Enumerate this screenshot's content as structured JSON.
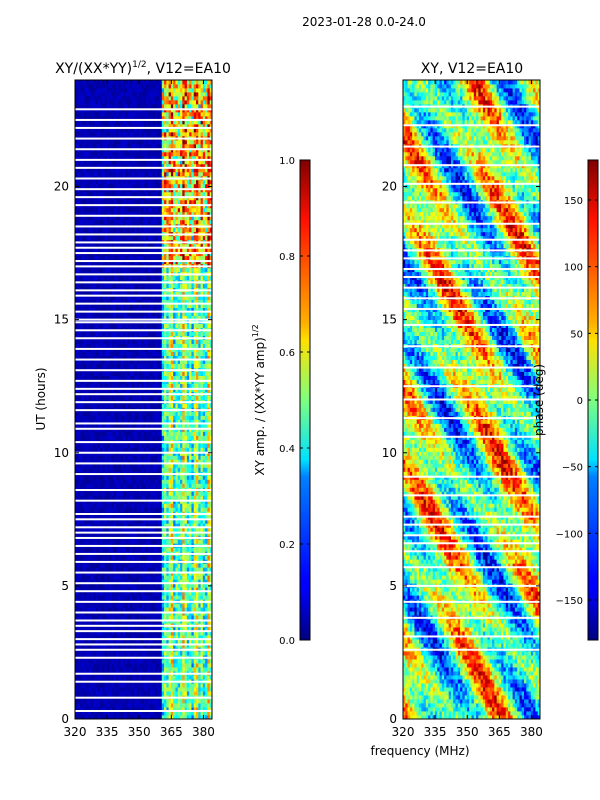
{
  "figure": {
    "suptitle": "2023-01-28 0.0-24.0",
    "shared_xlabel": "frequency (MHz)"
  },
  "chart_data": [
    {
      "type": "heatmap",
      "title": "XY/(XX*YY)",
      "title_superscript": "1/2",
      "title_suffix": ", V12=EA10",
      "ylabel": "UT (hours)",
      "xlim": [
        320,
        384
      ],
      "ylim": [
        0,
        24
      ],
      "xticks": [
        320,
        335,
        350,
        365,
        380
      ],
      "yticks": [
        0,
        5,
        10,
        15,
        20
      ],
      "band_start_mhz": 361,
      "gap_hours": [
        0.3,
        0.8,
        1.4,
        1.7,
        2.3,
        2.6,
        2.8,
        3.0,
        3.3,
        3.5,
        3.7,
        4.0,
        4.4,
        4.8,
        5.1,
        5.5,
        5.9,
        6.2,
        6.5,
        6.8,
        7.0,
        7.2,
        7.5,
        7.7,
        8.2,
        8.6,
        9.2,
        9.6,
        10.0,
        10.4,
        10.9,
        11.1,
        11.6,
        11.9,
        12.2,
        12.4,
        12.7,
        13.1,
        13.5,
        13.9,
        14.3,
        14.6,
        14.9,
        15.0,
        15.3,
        15.6,
        15.9,
        16.1,
        16.4,
        16.7,
        17.0,
        17.2,
        17.5,
        17.7,
        17.9,
        18.2,
        18.5,
        18.9,
        19.3,
        19.6,
        19.9,
        20.3,
        20.7,
        21.0,
        21.4,
        21.8,
        22.2,
        22.5,
        22.9
      ],
      "colorbar": {
        "label": "XY amp. / (XX*YY amp)",
        "label_superscript": "1/2",
        "range": [
          0,
          1
        ],
        "ticks": [
          "0.0",
          "0.2",
          "0.4",
          "0.6",
          "0.8",
          "1.0"
        ],
        "tick_values": [
          0,
          0.2,
          0.4,
          0.6,
          0.8,
          1.0
        ]
      }
    },
    {
      "type": "heatmap",
      "title": "XY, V12=EA10",
      "xlim": [
        320,
        384
      ],
      "ylim": [
        0,
        24
      ],
      "xticks": [
        320,
        335,
        350,
        365,
        380
      ],
      "yticks": [
        0,
        5,
        10,
        15,
        20
      ],
      "gap_hours": [
        2.6,
        3.1,
        3.8,
        4.4,
        5.0,
        5.7,
        6.3,
        6.6,
        6.9,
        7.3,
        7.6,
        8.4,
        9.1,
        10.6,
        11.3,
        12.0,
        12.5,
        13.2,
        14.0,
        14.8,
        15.4,
        15.8,
        16.2,
        16.6,
        16.9,
        17.3,
        17.6,
        18.0,
        18.6,
        19.4,
        20.1,
        20.8,
        21.5,
        22.3,
        23.0
      ],
      "colorbar": {
        "label": "phase (deg)",
        "range": [
          -180,
          180
        ],
        "ticks": [
          "−150",
          "−100",
          "−50",
          "0",
          "50",
          "100",
          "150"
        ],
        "tick_values": [
          -150,
          -100,
          -50,
          0,
          50,
          100,
          150
        ]
      }
    }
  ]
}
